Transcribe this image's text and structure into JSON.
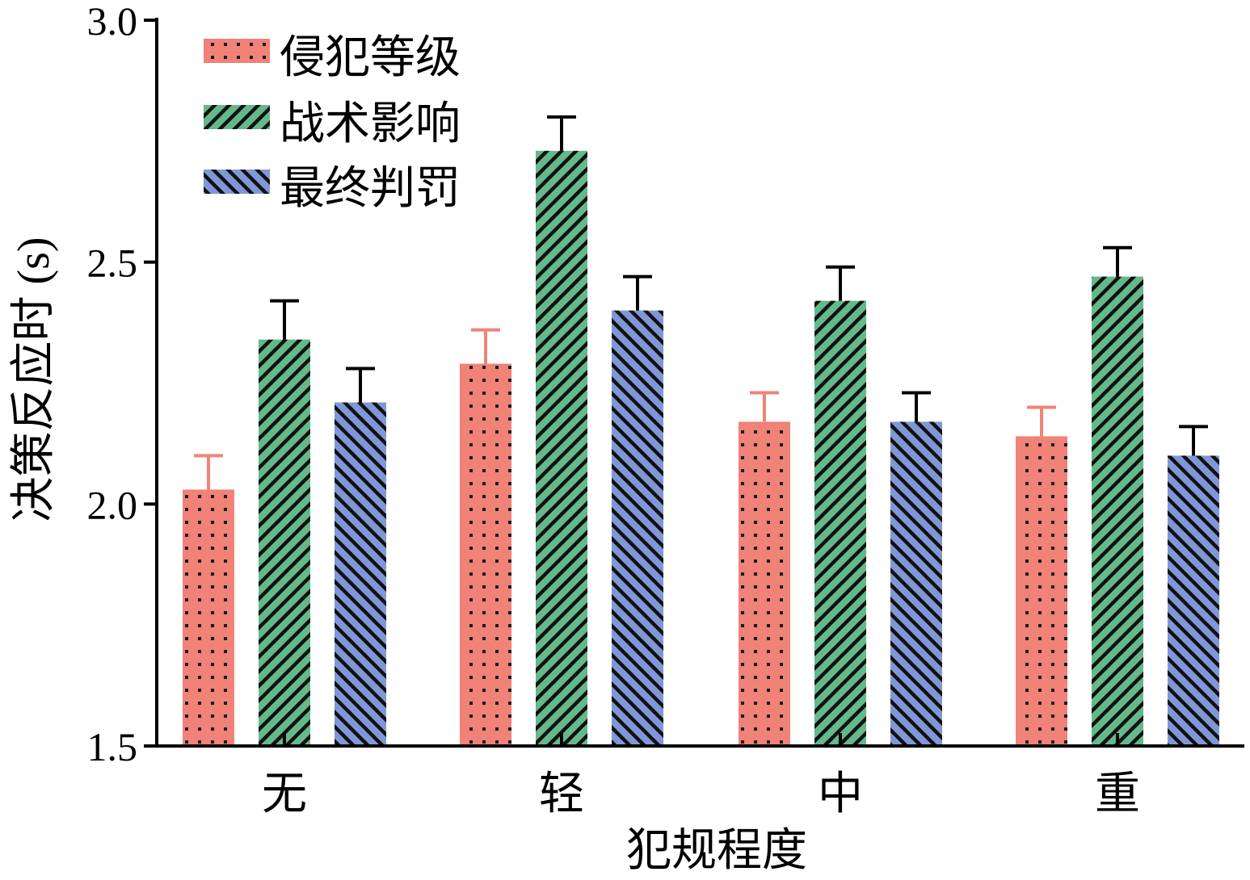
{
  "chart_data": {
    "type": "bar",
    "xlabel": "犯规程度",
    "ylabel": "决策反应时 (s)",
    "categories": [
      "无",
      "轻",
      "中",
      "重"
    ],
    "ylim": [
      1.5,
      3.0
    ],
    "yticks": [
      1.5,
      2.0,
      2.5,
      3.0
    ],
    "ytick_labels": [
      "1.5",
      "2.0",
      "2.5",
      "3.0"
    ],
    "grid": false,
    "legend_position": "top-left",
    "series": [
      {
        "name": "侵犯等级",
        "color": "#F08278",
        "pattern": "dots",
        "errcolor": "#F08278",
        "values": [
          2.03,
          2.29,
          2.17,
          2.14
        ],
        "errors": [
          0.07,
          0.07,
          0.06,
          0.06
        ]
      },
      {
        "name": "战术影响",
        "color": "#64B88A",
        "pattern": "hatch-forward",
        "errcolor": "#000000",
        "values": [
          2.34,
          2.73,
          2.42,
          2.47
        ],
        "errors": [
          0.08,
          0.07,
          0.07,
          0.06
        ]
      },
      {
        "name": "最终判罚",
        "color": "#7F97D6",
        "pattern": "hatch-back",
        "errcolor": "#000000",
        "values": [
          2.21,
          2.4,
          2.17,
          2.1
        ],
        "errors": [
          0.07,
          0.07,
          0.06,
          0.06
        ]
      }
    ]
  }
}
